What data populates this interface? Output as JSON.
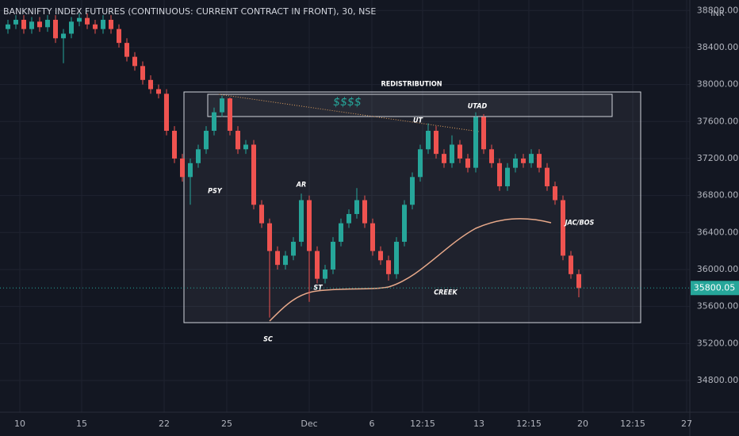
{
  "chart_data": {
    "type": "candlestick",
    "title": "BANKNIFTY INDEX FUTURES (CONTINUOUS: CURRENT CONTRACT IN FRONT), 30, NSE",
    "currency": "INR",
    "up_color": "#26a69a",
    "down_color": "#ef5350",
    "grid": true,
    "open": [
      38600,
      38650,
      38700,
      38600,
      38680,
      38620,
      38700,
      38500,
      38550,
      38680,
      38720,
      38650,
      38600,
      38700,
      38600,
      38450,
      38300,
      38200,
      38050,
      37950,
      37900,
      37500,
      37200,
      37000,
      37150,
      37300,
      37500,
      37700,
      37850,
      37500,
      37300,
      37350,
      36700,
      36500,
      36200,
      36050,
      36150,
      36300,
      36750,
      36200,
      35900,
      36000,
      36300,
      36500,
      36600,
      36750,
      36500,
      36200,
      36100,
      35950,
      36300,
      36700,
      37000,
      37300,
      37500,
      37250,
      37150,
      37350,
      37200,
      37100,
      37650,
      37300,
      37150,
      36900,
      37100,
      37200,
      37150,
      37250,
      37100,
      36900,
      36750,
      36150,
      35950
    ],
    "high": [
      38700,
      38750,
      38750,
      38730,
      38730,
      38750,
      38750,
      38600,
      38730,
      38770,
      38770,
      38700,
      38750,
      38750,
      38650,
      38500,
      38350,
      38250,
      38100,
      38000,
      37950,
      37550,
      37250,
      37200,
      37350,
      37550,
      37750,
      37880,
      37860,
      37550,
      37400,
      37400,
      36750,
      36550,
      36250,
      36200,
      36350,
      36820,
      36800,
      36250,
      36050,
      36350,
      36550,
      36650,
      36880,
      36800,
      36550,
      36250,
      36150,
      36350,
      36750,
      37050,
      37350,
      37580,
      37550,
      37300,
      37450,
      37400,
      37250,
      37700,
      37680,
      37350,
      37200,
      37150,
      37250,
      37250,
      37300,
      37300,
      37150,
      36950,
      36800,
      36200,
      36000
    ],
    "low": [
      38550,
      38600,
      38550,
      38550,
      38570,
      38570,
      38450,
      38230,
      38500,
      38630,
      38600,
      38550,
      38550,
      38550,
      38400,
      38250,
      38150,
      38000,
      37900,
      37850,
      37450,
      37150,
      36950,
      36700,
      37100,
      37250,
      37450,
      37650,
      37450,
      37250,
      37250,
      36650,
      36450,
      35480,
      36000,
      36000,
      36100,
      36250,
      35650,
      35850,
      35850,
      35950,
      36250,
      36450,
      36550,
      36450,
      36150,
      36050,
      35880,
      35900,
      36250,
      36650,
      36950,
      37250,
      37200,
      37100,
      37100,
      37150,
      37050,
      37050,
      37250,
      37100,
      36850,
      36850,
      37050,
      37100,
      37100,
      37050,
      36850,
      36700,
      36100,
      35900,
      35700
    ],
    "close": [
      38650,
      38700,
      38600,
      38680,
      38620,
      38700,
      38500,
      38550,
      38680,
      38720,
      38650,
      38600,
      38700,
      38600,
      38450,
      38300,
      38200,
      38050,
      37950,
      37900,
      37500,
      37200,
      37000,
      37150,
      37300,
      37500,
      37700,
      37850,
      37500,
      37300,
      37350,
      36700,
      36500,
      36200,
      36050,
      36150,
      36300,
      36750,
      36200,
      35900,
      36000,
      36300,
      36500,
      36600,
      36750,
      36500,
      36200,
      36100,
      35950,
      36300,
      36700,
      37000,
      37300,
      37500,
      37250,
      37150,
      37350,
      37200,
      37100,
      37650,
      37300,
      37150,
      36900,
      37100,
      37200,
      37150,
      37250,
      37100,
      36900,
      36750,
      36150,
      35950,
      35800
    ],
    "last_price": 35800.05,
    "xlim": [
      0,
      87
    ],
    "xticks": [
      {
        "value": 2.5,
        "label": "10"
      },
      {
        "value": 10.3,
        "label": "15"
      },
      {
        "value": 20.7,
        "label": "22"
      },
      {
        "value": 28.6,
        "label": "25"
      },
      {
        "value": 39,
        "label": "Dec"
      },
      {
        "value": 46.9,
        "label": "6"
      },
      {
        "value": 53.3,
        "label": "12:15"
      },
      {
        "value": 60.4,
        "label": "13"
      },
      {
        "value": 66.7,
        "label": "12:15"
      },
      {
        "value": 73.5,
        "label": "20"
      },
      {
        "value": 79.8,
        "label": "12:15"
      },
      {
        "value": 86.6,
        "label": "27"
      }
    ],
    "ylim": [
      34457,
      38914
    ],
    "yticks": [
      {
        "value": 34800,
        "label": "34800.00"
      },
      {
        "value": 35200,
        "label": "35200.00"
      },
      {
        "value": 35600,
        "label": "35600.00"
      },
      {
        "value": 36000,
        "label": "36000.00"
      },
      {
        "value": 36400,
        "label": "36400.00"
      },
      {
        "value": 36800,
        "label": "36800.00"
      },
      {
        "value": 37200,
        "label": "37200.00"
      },
      {
        "value": 37600,
        "label": "37600.00"
      },
      {
        "value": 38000,
        "label": "38000.00"
      },
      {
        "value": 38400,
        "label": "38400.00"
      },
      {
        "value": 38800,
        "label": "38800.00"
      }
    ],
    "annotations": {
      "redistribution": "REDISTRIBUTION",
      "dollars": "$$$$",
      "utad": "UTAD",
      "ut": "UT",
      "psy": "PSY",
      "ar": "AR",
      "st": "ST",
      "sc": "SC",
      "creek": "CREEK",
      "jac": "JAC/BOS"
    }
  }
}
